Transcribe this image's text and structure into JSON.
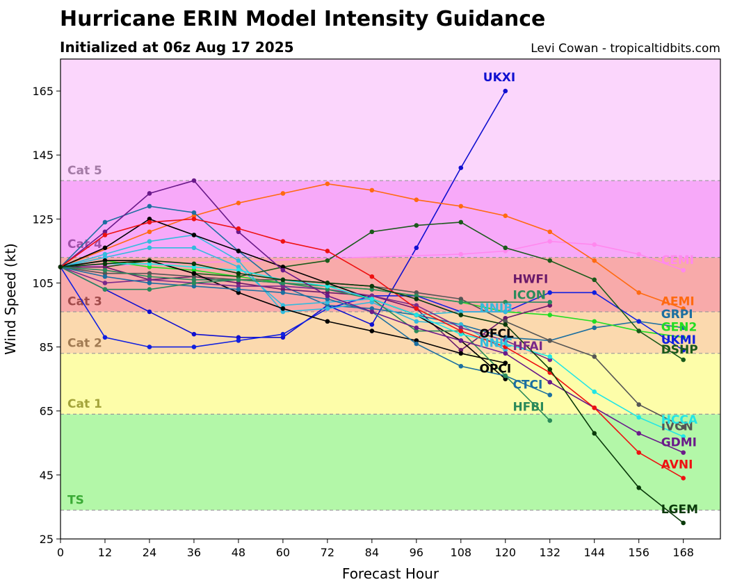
{
  "header": {
    "title": "Hurricane ERIN Model Intensity Guidance",
    "subtitle": "Initialized at 06z Aug 17 2025",
    "credit": "Levi Cowan - tropicaltidbits.com"
  },
  "chart_data": {
    "type": "line",
    "xlabel": "Forecast Hour",
    "ylabel": "Wind Speed (kt)",
    "xlim": [
      0,
      178
    ],
    "ylim": [
      25,
      175
    ],
    "xticks": [
      0,
      12,
      24,
      36,
      48,
      60,
      72,
      84,
      96,
      108,
      120,
      132,
      144,
      156,
      168
    ],
    "yticks": [
      25,
      45,
      65,
      85,
      105,
      125,
      145,
      165
    ],
    "grid": false,
    "bands": [
      {
        "label": "TS",
        "y0": 34,
        "y1": 64,
        "fill": "#b3f7a8",
        "label_color": "#3aaa35",
        "label_y": 36
      },
      {
        "label": "Cat 1",
        "y0": 64,
        "y1": 83,
        "fill": "#fdfda9",
        "label_color": "#a3a33a",
        "label_y": 66
      },
      {
        "label": "Cat 2",
        "y0": 83,
        "y1": 96,
        "fill": "#fbd9ae",
        "label_color": "#a07a52",
        "label_y": 85
      },
      {
        "label": "Cat 3",
        "y0": 96,
        "y1": 113,
        "fill": "#f8aaaa",
        "label_color": "#a04a4a",
        "label_y": 98
      },
      {
        "label": "Cat 4",
        "y0": 113,
        "y1": 137,
        "fill": "#f7a9f9",
        "label_color": "#a050a8",
        "label_y": 116
      },
      {
        "label": "Cat 5",
        "y0": 137,
        "y1": 175,
        "fill": "#fbd6fc",
        "label_color": "#a37aa5",
        "label_y": 139
      }
    ],
    "series": [
      {
        "name": "UKXI",
        "color": "#1010d0",
        "x": [
          0,
          12,
          24,
          36,
          48,
          60,
          72,
          84,
          96,
          108,
          120
        ],
        "y": [
          110,
          103,
          96,
          89,
          88,
          88,
          98,
          92,
          116,
          141,
          165
        ],
        "label_x": 114,
        "label_y": 168
      },
      {
        "name": "CEMI",
        "color": "#ff88ee",
        "x": [
          0,
          108,
          120,
          132,
          144,
          156,
          168
        ],
        "y": [
          110,
          114,
          115,
          118,
          117,
          114,
          109
        ],
        "label_x": 162,
        "label_y": 111
      },
      {
        "name": "AEMI",
        "color": "#ff6a10",
        "x": [
          0,
          24,
          36,
          48,
          60,
          72,
          84,
          96,
          108,
          120,
          132,
          144,
          156,
          168
        ],
        "y": [
          110,
          121,
          126,
          130,
          133,
          136,
          134,
          131,
          129,
          126,
          121,
          112,
          102,
          97
        ],
        "label_x": 162,
        "label_y": 98
      },
      {
        "name": "GRPI",
        "color": "#1c6fa0",
        "x": [
          0,
          12,
          24,
          36,
          48,
          60,
          72,
          84,
          96,
          108,
          120,
          132,
          144,
          156,
          168
        ],
        "y": [
          110,
          124,
          129,
          127,
          115,
          104,
          98,
          97,
          95,
          92,
          88,
          87,
          91,
          93,
          91
        ],
        "label_x": 162,
        "label_y": 94
      },
      {
        "name": "GEN2",
        "color": "#22dd22",
        "x": [
          0,
          12,
          24,
          36,
          48,
          60,
          72,
          84,
          96,
          108,
          120,
          132,
          144,
          156,
          168
        ],
        "y": [
          110,
          112,
          110,
          109,
          107,
          105,
          104,
          103,
          101,
          99,
          96,
          95,
          93,
          90,
          88
        ],
        "label_x": 162,
        "label_y": 90
      },
      {
        "name": "UKMI",
        "color": "#1020e0",
        "x": [
          0,
          12,
          24,
          36,
          48,
          60,
          72,
          84,
          96,
          108,
          120,
          132,
          144,
          156,
          168
        ],
        "y": [
          110,
          88,
          85,
          85,
          87,
          89,
          97,
          101,
          101,
          96,
          96,
          102,
          102,
          93,
          84
        ],
        "label_x": 162,
        "label_y": 86
      },
      {
        "name": "DSHP",
        "color": "#1a5a1a",
        "x": [
          0,
          12,
          24,
          36,
          48,
          60,
          72,
          84,
          96,
          108,
          120,
          132,
          144,
          156,
          168
        ],
        "y": [
          110,
          110,
          112,
          108,
          107,
          110,
          112,
          121,
          123,
          124,
          116,
          112,
          106,
          90,
          81
        ],
        "label_x": 162,
        "label_y": 83
      },
      {
        "name": "HWFI",
        "color": "#6a1a6a",
        "x": [
          0,
          12,
          24,
          36,
          48,
          60,
          72,
          84,
          96,
          108,
          120,
          132
        ],
        "y": [
          110,
          110,
          106,
          107,
          105,
          103,
          102,
          101,
          97,
          84,
          94,
          98
        ],
        "label_x": 122,
        "label_y": 105
      },
      {
        "name": "IVCN",
        "color": "#555555",
        "x": [
          0,
          12,
          24,
          36,
          48,
          60,
          72,
          84,
          96,
          108,
          120,
          132,
          144,
          156,
          168
        ],
        "y": [
          110,
          108,
          108,
          107,
          106,
          106,
          105,
          104,
          102,
          100,
          93,
          87,
          82,
          67,
          60
        ],
        "label_x": 162,
        "label_y": 59
      },
      {
        "name": "ICON",
        "color": "#2a8a5a",
        "x": [
          0,
          12,
          24,
          36,
          48,
          60,
          72,
          84,
          96,
          108,
          120,
          132
        ],
        "y": [
          110,
          109,
          107,
          106,
          106,
          105,
          104,
          103,
          101,
          99,
          99,
          99
        ],
        "label_x": 122,
        "label_y": 100
      },
      {
        "name": "NNIB",
        "color": "#33bbdd",
        "x": [
          0,
          12,
          24,
          36,
          48,
          60,
          72,
          84,
          96,
          108,
          120
        ],
        "y": [
          110,
          113,
          116,
          116,
          110,
          98,
          99,
          100,
          95,
          96,
          96
        ],
        "label_x": 113,
        "label_y": 96
      },
      {
        "name": "NNIC",
        "color": "#33bbdd",
        "x": [
          0,
          12,
          24,
          36,
          48,
          60,
          72,
          84,
          96,
          108,
          120
        ],
        "y": [
          110,
          114,
          118,
          120,
          112,
          96,
          97,
          99,
          93,
          92,
          84
        ],
        "label_x": 113,
        "label_y": 85
      },
      {
        "name": "OFCL",
        "color": "#000000",
        "x": [
          0,
          12,
          24,
          36,
          48,
          60,
          72,
          84,
          96,
          108,
          120
        ],
        "y": [
          110,
          112,
          112,
          108,
          102,
          97,
          93,
          90,
          87,
          83,
          80
        ],
        "label_x": 113,
        "label_y": 88
      },
      {
        "name": "OPCI",
        "color": "#000000",
        "x": [
          0,
          12,
          24,
          36,
          48,
          60,
          72,
          84,
          96,
          108,
          120
        ],
        "y": [
          110,
          116,
          125,
          120,
          115,
          110,
          105,
          100,
          95,
          87,
          75
        ],
        "label_x": 113,
        "label_y": 77
      },
      {
        "name": "HFAI",
        "color": "#7a2a8a",
        "x": [
          0,
          12,
          24,
          36,
          48,
          60,
          72,
          84,
          96,
          108,
          120,
          132
        ],
        "y": [
          110,
          105,
          106,
          105,
          104,
          104,
          103,
          101,
          98,
          91,
          87,
          81
        ],
        "label_x": 122,
        "label_y": 84
      },
      {
        "name": "CTCI",
        "color": "#1c6fa0",
        "x": [
          0,
          12,
          24,
          36,
          48,
          60,
          72,
          84,
          96,
          108,
          120,
          132
        ],
        "y": [
          110,
          107,
          105,
          104,
          103,
          102,
          100,
          96,
          86,
          79,
          76,
          70
        ],
        "label_x": 122,
        "label_y": 72
      },
      {
        "name": "HFBI",
        "color": "#2a8a5a",
        "x": [
          0,
          12,
          24,
          36,
          48,
          60,
          72,
          84,
          96,
          108,
          120,
          132
        ],
        "y": [
          110,
          103,
          103,
          105,
          106,
          105,
          103,
          100,
          90,
          90,
          76,
          62
        ],
        "label_x": 122,
        "label_y": 65
      },
      {
        "name": "HCCA",
        "color": "#22e5e5",
        "x": [
          0,
          12,
          24,
          36,
          48,
          60,
          72,
          84,
          96,
          108,
          120,
          132,
          144,
          156,
          168
        ],
        "y": [
          110,
          111,
          111,
          110,
          109,
          106,
          104,
          100,
          95,
          89,
          86,
          82,
          71,
          63,
          57
        ],
        "label_x": 162,
        "label_y": 61
      },
      {
        "name": "GDMI",
        "color": "#6a1a8a",
        "x": [
          0,
          12,
          24,
          36,
          48,
          60,
          72,
          84,
          96,
          108,
          120,
          132,
          144,
          156,
          168
        ],
        "y": [
          110,
          121,
          133,
          137,
          121,
          109,
          101,
          96,
          91,
          87,
          83,
          74,
          66,
          58,
          52
        ],
        "label_x": 162,
        "label_y": 54
      },
      {
        "name": "AVNI",
        "color": "#ee1111",
        "x": [
          0,
          12,
          24,
          36,
          48,
          60,
          72,
          84,
          96,
          108,
          120,
          132,
          144,
          156,
          168
        ],
        "y": [
          110,
          120,
          124,
          125,
          122,
          118,
          115,
          107,
          97,
          90,
          85,
          77,
          66,
          52,
          44
        ],
        "label_x": 162,
        "label_y": 47
      },
      {
        "name": "LGEM",
        "color": "#0a3a0a",
        "x": [
          0,
          12,
          24,
          36,
          48,
          60,
          72,
          84,
          96,
          108,
          120,
          132,
          144,
          156,
          168
        ],
        "y": [
          110,
          111,
          112,
          111,
          108,
          106,
          105,
          104,
          100,
          95,
          92,
          78,
          58,
          41,
          30
        ],
        "label_x": 162,
        "label_y": 33
      }
    ]
  }
}
